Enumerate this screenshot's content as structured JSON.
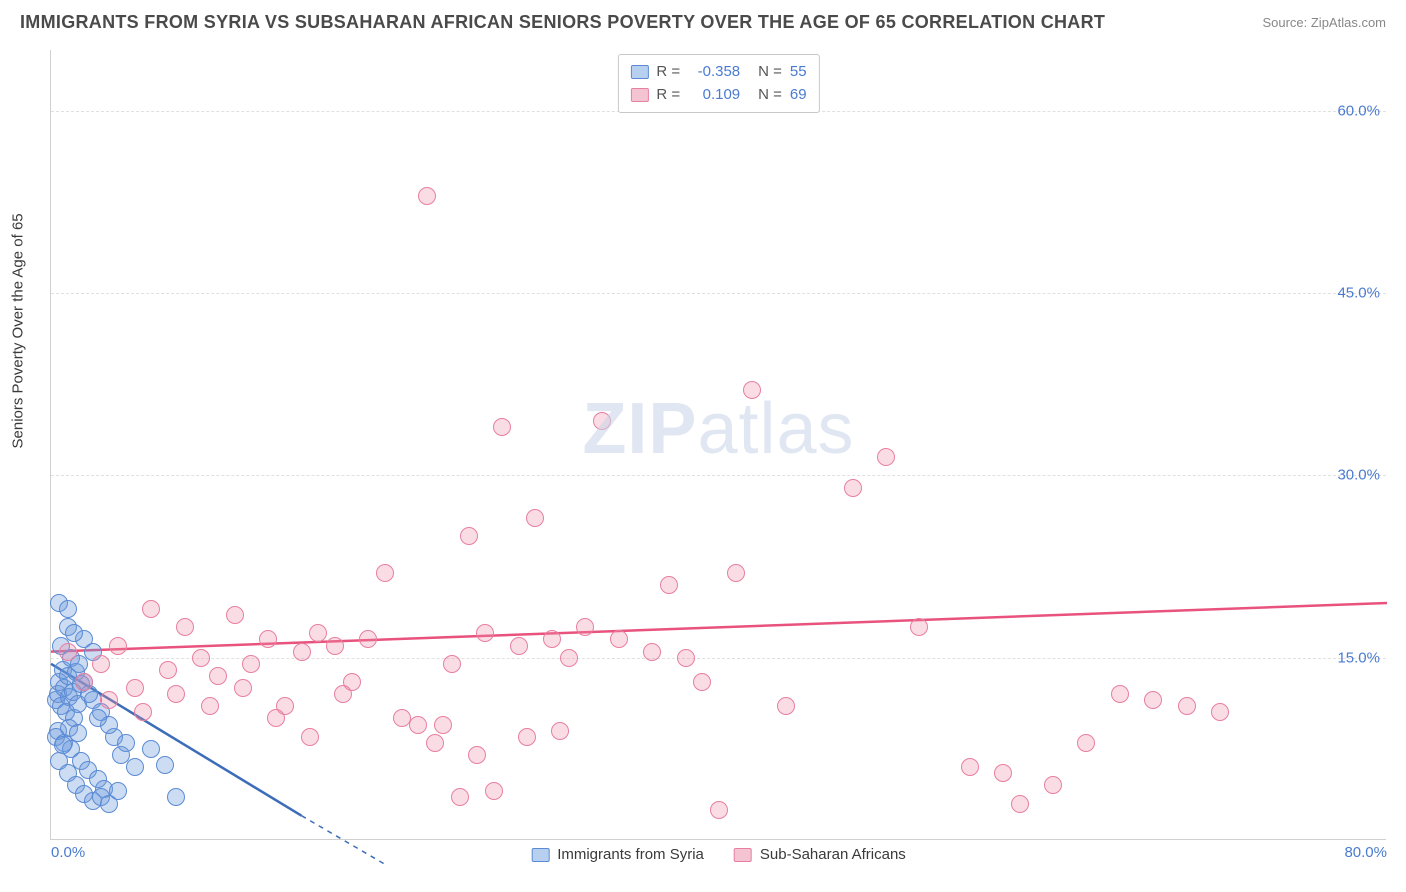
{
  "title": "IMMIGRANTS FROM SYRIA VS SUBSAHARAN AFRICAN SENIORS POVERTY OVER THE AGE OF 65 CORRELATION CHART",
  "source": "Source: ZipAtlas.com",
  "ylabel": "Seniors Poverty Over the Age of 65",
  "watermark_bold": "ZIP",
  "watermark_rest": "atlas",
  "chart": {
    "type": "scatter",
    "xlim": [
      0,
      80
    ],
    "ylim": [
      0,
      65
    ],
    "xticks": [
      {
        "v": 0,
        "label": "0.0%"
      },
      {
        "v": 80,
        "label": "80.0%"
      }
    ],
    "yticks": [
      {
        "v": 15,
        "label": "15.0%"
      },
      {
        "v": 30,
        "label": "30.0%"
      },
      {
        "v": 45,
        "label": "45.0%"
      },
      {
        "v": 60,
        "label": "60.0%"
      }
    ],
    "background_color": "#ffffff",
    "grid_color": "#e0e0e0",
    "axis_color": "#d0d0d0",
    "tick_label_color": "#4a7bd0",
    "marker_radius": 9,
    "series": [
      {
        "id": "syria",
        "label": "Immigrants from Syria",
        "R": "-0.358",
        "N": "55",
        "fill": "rgba(110,155,220,0.35)",
        "stroke": "#5b8bd4",
        "swatch_fill": "#b8d0f0",
        "swatch_border": "#5b8bd4",
        "trend": {
          "x1": 0,
          "y1": 14.5,
          "x2": 15,
          "y2": 2,
          "color": "#3d6db8",
          "width": 2.5,
          "dash": "none",
          "extend_dash": {
            "x2": 20,
            "y2": -2
          }
        },
        "points": [
          [
            0.3,
            11.5
          ],
          [
            0.4,
            12.0
          ],
          [
            0.5,
            13.0
          ],
          [
            0.6,
            11.0
          ],
          [
            0.7,
            14.0
          ],
          [
            0.8,
            12.5
          ],
          [
            0.9,
            10.5
          ],
          [
            1.0,
            13.5
          ],
          [
            1.1,
            11.8
          ],
          [
            1.2,
            15.0
          ],
          [
            1.3,
            12.2
          ],
          [
            1.4,
            10.0
          ],
          [
            1.5,
            13.8
          ],
          [
            1.6,
            11.2
          ],
          [
            1.7,
            14.5
          ],
          [
            1.8,
            12.8
          ],
          [
            0.5,
            19.5
          ],
          [
            1.0,
            17.5
          ],
          [
            2.0,
            16.5
          ],
          [
            2.5,
            15.5
          ],
          [
            0.4,
            9.0
          ],
          [
            0.8,
            8.0
          ],
          [
            1.2,
            7.5
          ],
          [
            1.8,
            6.5
          ],
          [
            2.2,
            5.8
          ],
          [
            2.8,
            5.0
          ],
          [
            3.2,
            4.2
          ],
          [
            3.8,
            8.5
          ],
          [
            4.2,
            7.0
          ],
          [
            0.6,
            16.0
          ],
          [
            1.4,
            17.0
          ],
          [
            2.0,
            13.0
          ],
          [
            2.5,
            11.5
          ],
          [
            3.0,
            10.5
          ],
          [
            3.5,
            9.5
          ],
          [
            1.0,
            19.0
          ],
          [
            0.3,
            8.5
          ],
          [
            0.7,
            7.8
          ],
          [
            1.1,
            9.2
          ],
          [
            1.6,
            8.8
          ],
          [
            2.3,
            12.0
          ],
          [
            2.8,
            10.0
          ],
          [
            0.5,
            6.5
          ],
          [
            1.0,
            5.5
          ],
          [
            1.5,
            4.5
          ],
          [
            2.0,
            3.8
          ],
          [
            2.5,
            3.2
          ],
          [
            4.5,
            8.0
          ],
          [
            5.0,
            6.0
          ],
          [
            6.0,
            7.5
          ],
          [
            6.8,
            6.2
          ],
          [
            7.5,
            3.5
          ],
          [
            3.0,
            3.5
          ],
          [
            3.5,
            3.0
          ],
          [
            4.0,
            4.0
          ]
        ]
      },
      {
        "id": "ssa",
        "label": "Sub-Saharan Africans",
        "R": "0.109",
        "N": "69",
        "fill": "rgba(240,140,165,0.30)",
        "stroke": "#e87fa0",
        "swatch_fill": "#f5c4d2",
        "swatch_border": "#e87fa0",
        "trend": {
          "x1": 0,
          "y1": 15.5,
          "x2": 80,
          "y2": 19.5,
          "color": "#e8527d",
          "width": 2.5,
          "dash": "none"
        },
        "points": [
          [
            1.0,
            15.5
          ],
          [
            2.0,
            13.0
          ],
          [
            3.0,
            14.5
          ],
          [
            4.0,
            16.0
          ],
          [
            5.0,
            12.5
          ],
          [
            6.0,
            19.0
          ],
          [
            7.0,
            14.0
          ],
          [
            8.0,
            17.5
          ],
          [
            9.0,
            15.0
          ],
          [
            10.0,
            13.5
          ],
          [
            11.0,
            18.5
          ],
          [
            12.0,
            14.5
          ],
          [
            13.0,
            16.5
          ],
          [
            14.0,
            11.0
          ],
          [
            15.0,
            15.5
          ],
          [
            16.0,
            17.0
          ],
          [
            17.0,
            16.0
          ],
          [
            18.0,
            13.0
          ],
          [
            19.0,
            16.5
          ],
          [
            20.0,
            22.0
          ],
          [
            21.0,
            10.0
          ],
          [
            22.0,
            9.5
          ],
          [
            23.0,
            8.0
          ],
          [
            22.5,
            53.0
          ],
          [
            24.0,
            14.5
          ],
          [
            25.0,
            25.0
          ],
          [
            26.0,
            17.0
          ],
          [
            27.0,
            34.0
          ],
          [
            28.0,
            16.0
          ],
          [
            29.0,
            26.5
          ],
          [
            30.0,
            16.5
          ],
          [
            31.0,
            15.0
          ],
          [
            32.0,
            17.5
          ],
          [
            33.0,
            34.5
          ],
          [
            34.0,
            16.5
          ],
          [
            36.0,
            15.5
          ],
          [
            37.0,
            21.0
          ],
          [
            38.0,
            15.0
          ],
          [
            39.0,
            13.0
          ],
          [
            40.0,
            2.5
          ],
          [
            41.0,
            22.0
          ],
          [
            42.0,
            37.0
          ],
          [
            44.0,
            11.0
          ],
          [
            48.0,
            29.0
          ],
          [
            50.0,
            31.5
          ],
          [
            52.0,
            17.5
          ],
          [
            55.0,
            6.0
          ],
          [
            57.0,
            5.5
          ],
          [
            58.0,
            3.0
          ],
          [
            60.0,
            4.5
          ],
          [
            62.0,
            8.0
          ],
          [
            64.0,
            12.0
          ],
          [
            66.0,
            11.5
          ],
          [
            68.0,
            11.0
          ],
          [
            70.0,
            10.5
          ],
          [
            3.5,
            11.5
          ],
          [
            5.5,
            10.5
          ],
          [
            7.5,
            12.0
          ],
          [
            9.5,
            11.0
          ],
          [
            11.5,
            12.5
          ],
          [
            13.5,
            10.0
          ],
          [
            15.5,
            8.5
          ],
          [
            17.5,
            12.0
          ],
          [
            24.5,
            3.5
          ],
          [
            26.5,
            4.0
          ],
          [
            28.5,
            8.5
          ],
          [
            30.5,
            9.0
          ],
          [
            23.5,
            9.5
          ],
          [
            25.5,
            7.0
          ]
        ]
      }
    ]
  },
  "legend_stats": {
    "r_label": "R =",
    "n_label": "N ="
  }
}
